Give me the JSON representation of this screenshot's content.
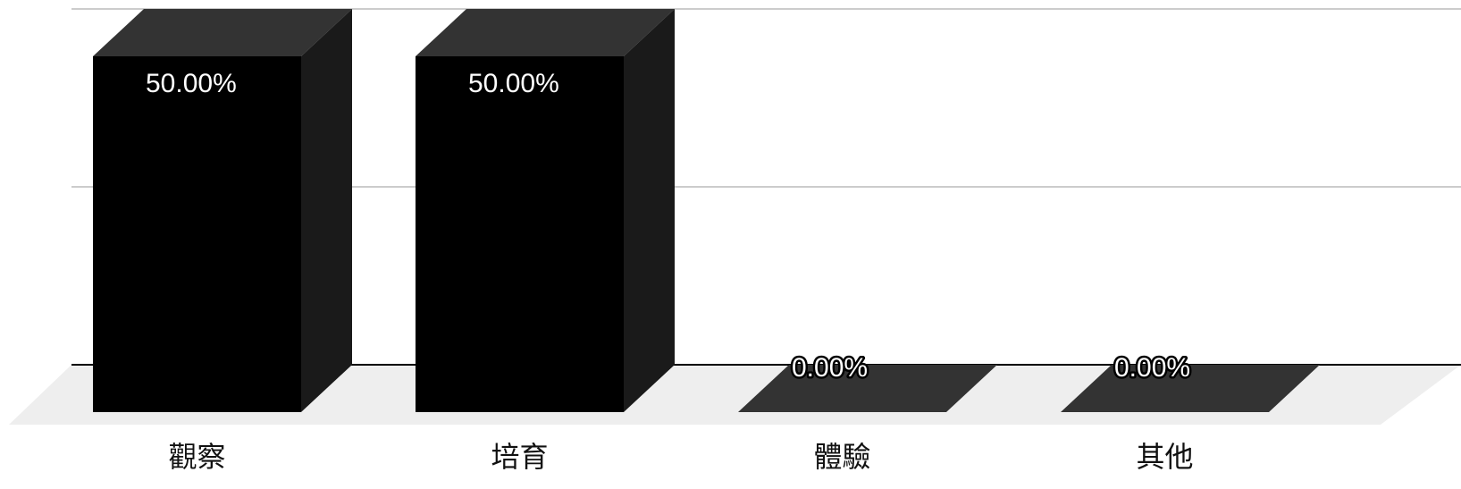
{
  "chart_data": {
    "type": "bar",
    "style": "3d",
    "categories": [
      "觀察",
      "培育",
      "體驗",
      "其他"
    ],
    "values": [
      50,
      50,
      0,
      0
    ],
    "value_labels": [
      "50.00%",
      "50.00%",
      "0.00%",
      "0.00%"
    ],
    "unit": "%",
    "ylim": [
      0,
      50
    ],
    "grid": true,
    "legend": "none",
    "colors": {
      "bar_front": "#000000",
      "bar_top": "#333333",
      "bar_side": "#1a1a1a",
      "floor": "#eeeeee",
      "gridline": "#cccccc",
      "axis": "#000000",
      "value_text": "#ffffff"
    }
  }
}
